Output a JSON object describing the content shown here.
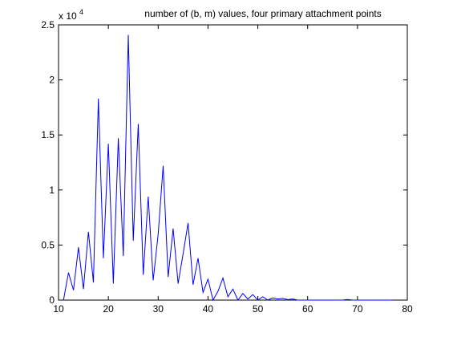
{
  "chart_data": {
    "type": "line",
    "title": "number of (b, m) values, four primary attachment points",
    "xlabel": "",
    "ylabel": "",
    "xlim": [
      10,
      80
    ],
    "ylim": [
      0,
      25000
    ],
    "xticks": [
      10,
      20,
      30,
      40,
      50,
      60,
      70,
      80
    ],
    "yticks": [
      0,
      5000,
      10000,
      15000,
      20000,
      25000
    ],
    "xtick_labels": [
      "10",
      "20",
      "30",
      "40",
      "50",
      "60",
      "70",
      "80"
    ],
    "ytick_labels": [
      "0",
      "0.5",
      "1",
      "1.5",
      "2",
      "2.5"
    ],
    "y_exponent_label": "x 10",
    "y_exponent_power": "4",
    "grid": false,
    "series": [
      {
        "color": "#0000ff",
        "x": [
          11,
          12,
          13,
          14,
          15,
          16,
          17,
          18,
          19,
          20,
          21,
          22,
          23,
          24,
          25,
          26,
          27,
          28,
          29,
          30,
          31,
          32,
          33,
          34,
          35,
          36,
          37,
          38,
          39,
          40,
          41,
          42,
          43,
          44,
          45,
          46,
          47,
          48,
          49,
          50,
          51,
          52,
          53,
          54,
          55,
          56,
          57,
          58,
          59,
          60,
          61,
          62,
          63,
          64,
          65,
          66,
          67,
          68,
          69,
          70,
          71,
          72,
          73,
          74,
          75,
          76,
          77
        ],
        "y": [
          0,
          2500,
          900,
          4800,
          1000,
          6200,
          1600,
          18300,
          3800,
          14200,
          1500,
          14700,
          4000,
          24100,
          5400,
          16000,
          2300,
          9400,
          1800,
          6000,
          12200,
          2100,
          6500,
          1500,
          4200,
          7000,
          1400,
          3800,
          700,
          1900,
          0,
          800,
          2000,
          300,
          1000,
          0,
          600,
          100,
          500,
          0,
          300,
          0,
          200,
          100,
          150,
          50,
          100,
          0,
          0,
          0,
          0,
          0,
          0,
          0,
          0,
          0,
          0,
          50,
          0,
          0,
          0,
          0,
          0,
          0,
          0,
          0,
          0
        ]
      }
    ]
  }
}
